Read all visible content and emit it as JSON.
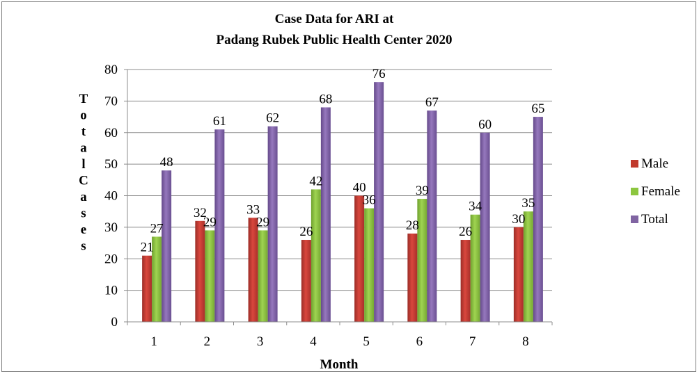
{
  "chart_data": {
    "type": "bar",
    "title": [
      "Case Data for ARI at",
      "Padang Rubek Public Health Center 2020"
    ],
    "xlabel": "Month",
    "ylabel": "Total Cases",
    "categories": [
      "1",
      "2",
      "3",
      "4",
      "5",
      "6",
      "7",
      "8"
    ],
    "ylim": [
      0,
      80
    ],
    "yticks": [
      0,
      10,
      20,
      30,
      40,
      50,
      60,
      70,
      80
    ],
    "grid": true,
    "legend_position": "right",
    "data_labels": true,
    "series": [
      {
        "name": "Male",
        "color": "#c0392b",
        "values": [
          21,
          32,
          33,
          26,
          40,
          28,
          26,
          30
        ]
      },
      {
        "name": "Female",
        "color": "#8cc63f",
        "values": [
          27,
          29,
          29,
          42,
          36,
          39,
          34,
          35
        ]
      },
      {
        "name": "Total",
        "color": "#8064a2",
        "values": [
          48,
          61,
          62,
          68,
          76,
          67,
          60,
          65
        ]
      }
    ]
  }
}
